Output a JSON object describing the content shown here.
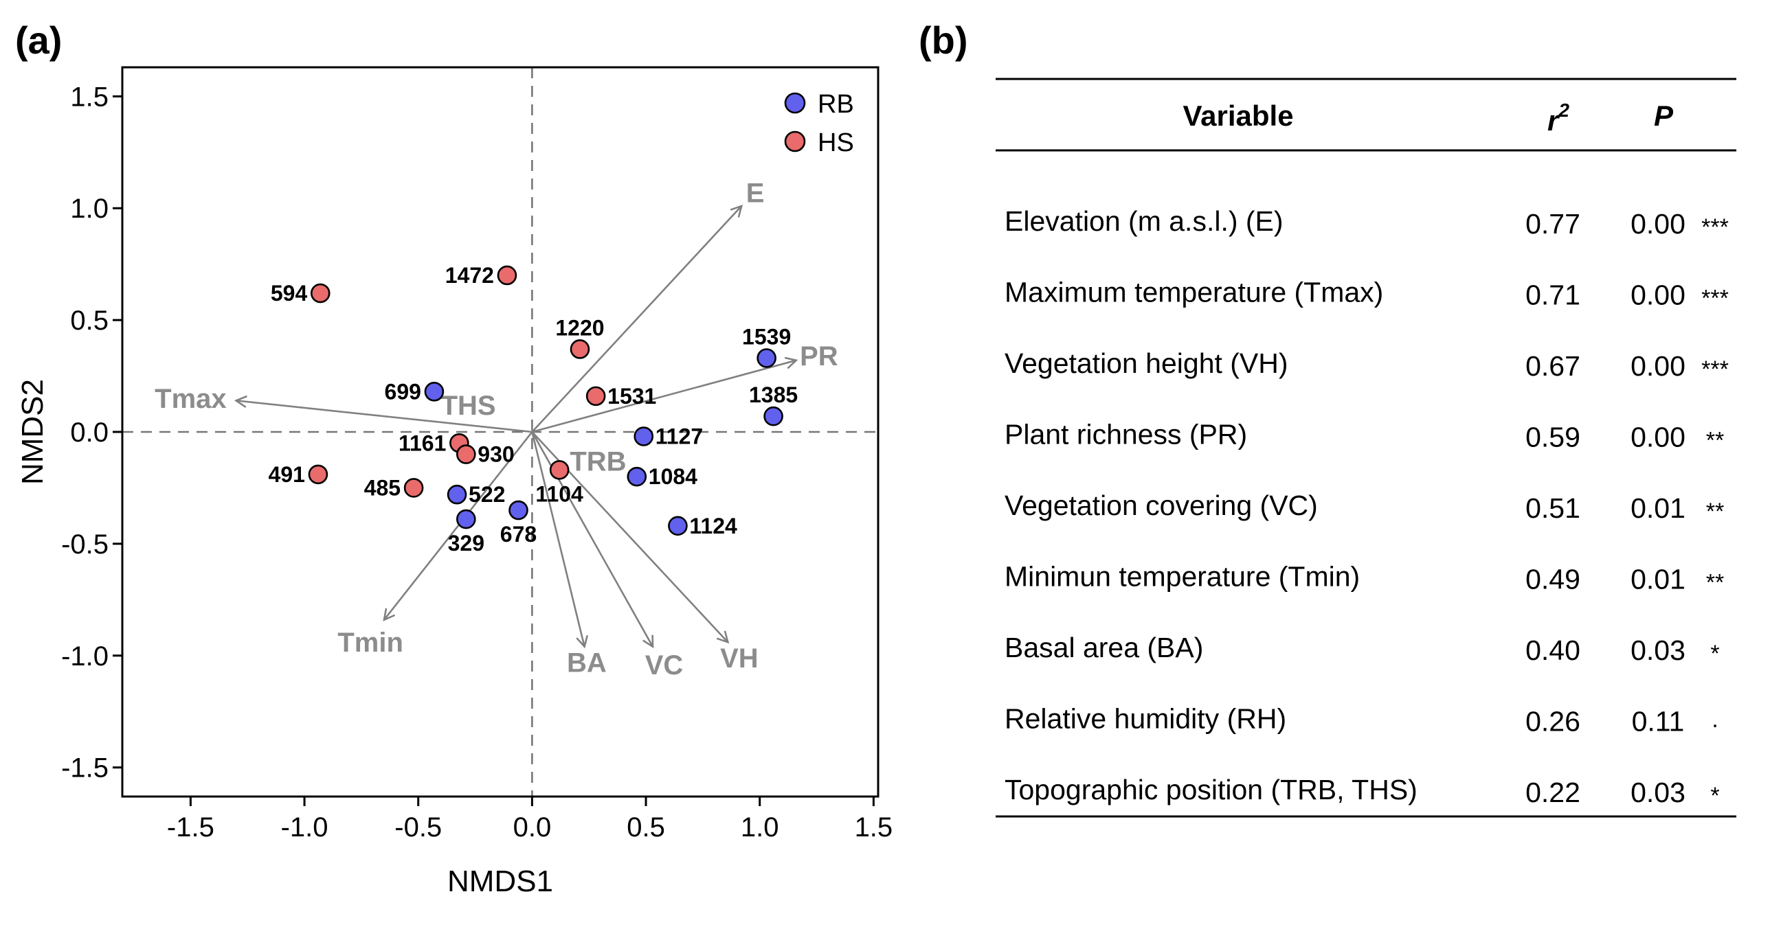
{
  "panel_a_label": "(a)",
  "panel_b_label": "(b)",
  "chart_data": {
    "type": "scatter",
    "subtype": "NMDS ordination biplot",
    "xlabel": "NMDS1",
    "ylabel": "NMDS2",
    "xlim": [
      -1.8,
      1.52
    ],
    "ylim": [
      -1.63,
      1.63
    ],
    "xticks": [
      -1.5,
      -1.0,
      -0.5,
      0.0,
      0.5,
      1.0,
      1.5
    ],
    "yticks": [
      -1.5,
      -1.0,
      -0.5,
      0.0,
      0.5,
      1.0,
      1.5
    ],
    "xtick_labels": [
      "-1.5",
      "-1.0",
      "-0.5",
      "0.0",
      "0.5",
      "1.0",
      "1.5"
    ],
    "ytick_labels": [
      "-1.5",
      "-1.0",
      "-0.5",
      "0.0",
      "0.5",
      "1.0",
      "1.5"
    ],
    "grid": false,
    "reference_lines": "dashed at x=0 and y=0",
    "legend_position": "top-right",
    "series": [
      {
        "name": "RB",
        "color": "#6161ee",
        "points": [
          {
            "label": "699",
            "x": -0.43,
            "y": 0.18,
            "anchor": "left"
          },
          {
            "label": "1539",
            "x": 1.03,
            "y": 0.33,
            "anchor": "top"
          },
          {
            "label": "1385",
            "x": 1.06,
            "y": 0.07,
            "anchor": "top"
          },
          {
            "label": "1127",
            "x": 0.49,
            "y": -0.02,
            "anchor": "right"
          },
          {
            "label": "1084",
            "x": 0.46,
            "y": -0.2,
            "anchor": "right"
          },
          {
            "label": "1124",
            "x": 0.64,
            "y": -0.42,
            "anchor": "right"
          },
          {
            "label": "522",
            "x": -0.33,
            "y": -0.28,
            "anchor": "right"
          },
          {
            "label": "329",
            "x": -0.29,
            "y": -0.39,
            "anchor": "below"
          },
          {
            "label": "678",
            "x": -0.06,
            "y": -0.35,
            "anchor": "below"
          }
        ]
      },
      {
        "name": "HS",
        "color": "#e96b6b",
        "points": [
          {
            "label": "594",
            "x": -0.93,
            "y": 0.62,
            "anchor": "left"
          },
          {
            "label": "1472",
            "x": -0.11,
            "y": 0.7,
            "anchor": "left"
          },
          {
            "label": "1220",
            "x": 0.21,
            "y": 0.37,
            "anchor": "top"
          },
          {
            "label": "1531",
            "x": 0.28,
            "y": 0.16,
            "anchor": "right"
          },
          {
            "label": "1161",
            "x": -0.32,
            "y": -0.05,
            "anchor": "left"
          },
          {
            "label": "930",
            "x": -0.29,
            "y": -0.1,
            "anchor": "right"
          },
          {
            "label": "491",
            "x": -0.94,
            "y": -0.19,
            "anchor": "left"
          },
          {
            "label": "485",
            "x": -0.52,
            "y": -0.25,
            "anchor": "left"
          },
          {
            "label": "1104",
            "x": 0.12,
            "y": -0.17,
            "anchor": "below"
          }
        ]
      }
    ],
    "vectors": [
      {
        "name": "E",
        "x": 0.92,
        "y": 1.01,
        "label_x": 0.98,
        "label_y": 1.07
      },
      {
        "name": "PR",
        "x": 1.16,
        "y": 0.32,
        "label_x": 1.26,
        "label_y": 0.34
      },
      {
        "name": "Tmax",
        "x": -1.3,
        "y": 0.14,
        "label_x": -1.5,
        "label_y": 0.15
      },
      {
        "name": "Tmin",
        "x": -0.65,
        "y": -0.84,
        "label_x": -0.71,
        "label_y": -0.94
      },
      {
        "name": "BA",
        "x": 0.23,
        "y": -0.96,
        "label_x": 0.24,
        "label_y": -1.03
      },
      {
        "name": "VC",
        "x": 0.53,
        "y": -0.96,
        "label_x": 0.58,
        "label_y": -1.04
      },
      {
        "name": "VH",
        "x": 0.86,
        "y": -0.94,
        "label_x": 0.91,
        "label_y": -1.01
      }
    ],
    "centroid_labels": [
      {
        "name": "THS",
        "x": -0.28,
        "y": 0.12
      },
      {
        "name": "TRB",
        "x": 0.29,
        "y": -0.13
      }
    ]
  },
  "table": {
    "headers": {
      "variable": "Variable",
      "r2": "r",
      "r2_sup": "2",
      "p": "P"
    },
    "rows": [
      {
        "variable": "Elevation (m a.s.l.) (E)",
        "r2": "0.77",
        "p": "0.00",
        "sig": "***"
      },
      {
        "variable": "Maximum temperature (Tmax)",
        "r2": "0.71",
        "p": "0.00",
        "sig": "***"
      },
      {
        "variable": "Vegetation height (VH)",
        "r2": "0.67",
        "p": "0.00",
        "sig": "***"
      },
      {
        "variable": "Plant richness (PR)",
        "r2": "0.59",
        "p": "0.00",
        "sig": "**"
      },
      {
        "variable": "Vegetation covering (VC)",
        "r2": "0.51",
        "p": "0.01",
        "sig": "**"
      },
      {
        "variable": "Minimun temperature (Tmin)",
        "r2": "0.49",
        "p": "0.01",
        "sig": "**"
      },
      {
        "variable": "Basal area (BA)",
        "r2": "0.40",
        "p": "0.03",
        "sig": "*"
      },
      {
        "variable": "Relative humidity (RH)",
        "r2": "0.26",
        "p": "0.11",
        "sig": "·"
      },
      {
        "variable": "Topographic position (TRB, THS)",
        "r2": "0.22",
        "p": "0.03",
        "sig": "*"
      }
    ]
  }
}
